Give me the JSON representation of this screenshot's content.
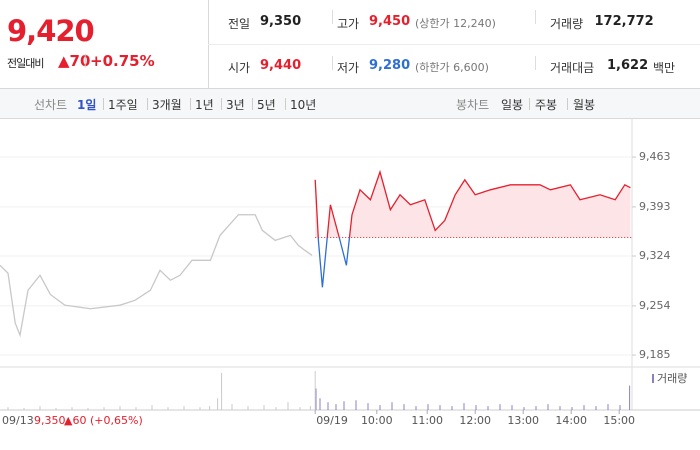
{
  "quote": {
    "price": "9,420",
    "change_label": "전일대비",
    "change": "▲70",
    "change_rate": "+0.75%"
  },
  "stats": {
    "rows": [
      [
        {
          "label": "전일",
          "value": "9,350",
          "color": "#222222"
        },
        {
          "label": "고가",
          "value": "9,450",
          "note": "(상한가 12,240)",
          "color": "#e5202e"
        },
        {
          "label": "거래량",
          "value": "172,772",
          "color": "#222222"
        }
      ],
      [
        {
          "label": "시가",
          "value": "9,440",
          "color": "#e5202e"
        },
        {
          "label": "저가",
          "value": "9,280",
          "note": "(하한가 6,600)",
          "color": "#2f6fd4"
        },
        {
          "label": "거래대금",
          "value": "1,622",
          "unit": "백만",
          "color": "#222222"
        }
      ]
    ]
  },
  "line_tabs": {
    "label": "선차트",
    "items": [
      "1일",
      "1주일",
      "3개월",
      "1년",
      "3년",
      "5년",
      "10년"
    ],
    "active": 0
  },
  "candle_tabs": {
    "label": "봉차트",
    "items": [
      "일봉",
      "주봉",
      "월봉"
    ]
  },
  "chart_data": {
    "type": "line",
    "xlim": [
      0,
      790
    ],
    "ylim": [
      9171,
      9508
    ],
    "yticks": [
      {
        "value": 9463,
        "label": "9,463"
      },
      {
        "value": 9393,
        "label": "9,393"
      },
      {
        "value": 9324,
        "label": "9,324"
      },
      {
        "value": 9254,
        "label": "9,254"
      },
      {
        "value": 9185,
        "label": "9,185"
      }
    ],
    "xticks": [
      {
        "value": 394,
        "label": "09/19"
      },
      {
        "value": 471,
        "label": "10:00"
      },
      {
        "value": 534,
        "label": "11:00"
      },
      {
        "value": 594,
        "label": "12:00"
      },
      {
        "value": 654,
        "label": "13:00"
      },
      {
        "value": 714,
        "label": "14:00"
      },
      {
        "value": 774,
        "label": "15:00"
      }
    ],
    "baseline": 9350,
    "series": [
      {
        "color": "#c8c8c8",
        "x": [
          0,
          10,
          19,
          25,
          35,
          50,
          63,
          81,
          113,
          150,
          169,
          188,
          200,
          213,
          225,
          240,
          263,
          275,
          298,
          319,
          328,
          344,
          363,
          373,
          381,
          390
        ],
        "values": [
          9311,
          9300,
          9230,
          9213,
          9276,
          9297,
          9270,
          9255,
          9250,
          9255,
          9262,
          9276,
          9304,
          9290,
          9297,
          9318,
          9318,
          9353,
          9382,
          9382,
          9360,
          9346,
          9353,
          9339,
          9332,
          9325
        ]
      },
      {
        "color": "#e5202e",
        "color_down": "#2f6fd4",
        "fill_color": "#fde4e7",
        "x": [
          394,
          398,
          403,
          413,
          425,
          433,
          440,
          450,
          463,
          475,
          488,
          500,
          513,
          531,
          544,
          556,
          569,
          581,
          594,
          613,
          638,
          675,
          688,
          713,
          725,
          750,
          769,
          781,
          788
        ],
        "values": [
          9431,
          9346,
          9280,
          9396,
          9346,
          9311,
          9382,
          9417,
          9403,
          9442,
          9389,
          9410,
          9396,
          9403,
          9360,
          9374,
          9410,
          9431,
          9410,
          9417,
          9424,
          9424,
          9417,
          9424,
          9403,
          9410,
          9403,
          9424,
          9420
        ]
      }
    ],
    "volume": {
      "name": "거래량",
      "ylim": [
        0,
        40
      ],
      "series": [
        {
          "color": "#c8c8c8",
          "x": [
            10,
            30,
            50,
            70,
            90,
            110,
            130,
            150,
            170,
            190,
            210,
            230,
            250,
            262,
            272,
            277,
            290,
            310,
            330,
            345,
            360,
            375,
            388
          ],
          "values": [
            3,
            2,
            4,
            2,
            3,
            2,
            3,
            4,
            3,
            5,
            3,
            4,
            3,
            4,
            12,
            38,
            6,
            4,
            5,
            3,
            8,
            3,
            4
          ]
        },
        {
          "color": "#8c7fc4",
          "x": [
            395,
            400,
            410,
            420,
            430,
            445,
            460,
            475,
            490,
            505,
            520,
            535,
            550,
            565,
            580,
            595,
            610,
            625,
            640,
            655,
            670,
            685,
            700,
            715,
            730,
            745,
            760,
            775,
            787
          ],
          "values": [
            22,
            12,
            8,
            6,
            9,
            10,
            7,
            5,
            8,
            6,
            4,
            6,
            5,
            4,
            7,
            5,
            4,
            6,
            5,
            3,
            4,
            6,
            4,
            3,
            5,
            4,
            6,
            5,
            25
          ]
        }
      ]
    },
    "prev_day": {
      "date": "09/13",
      "close": "9,350",
      "change": "▲60",
      "rate": "(+0,65%)"
    }
  }
}
